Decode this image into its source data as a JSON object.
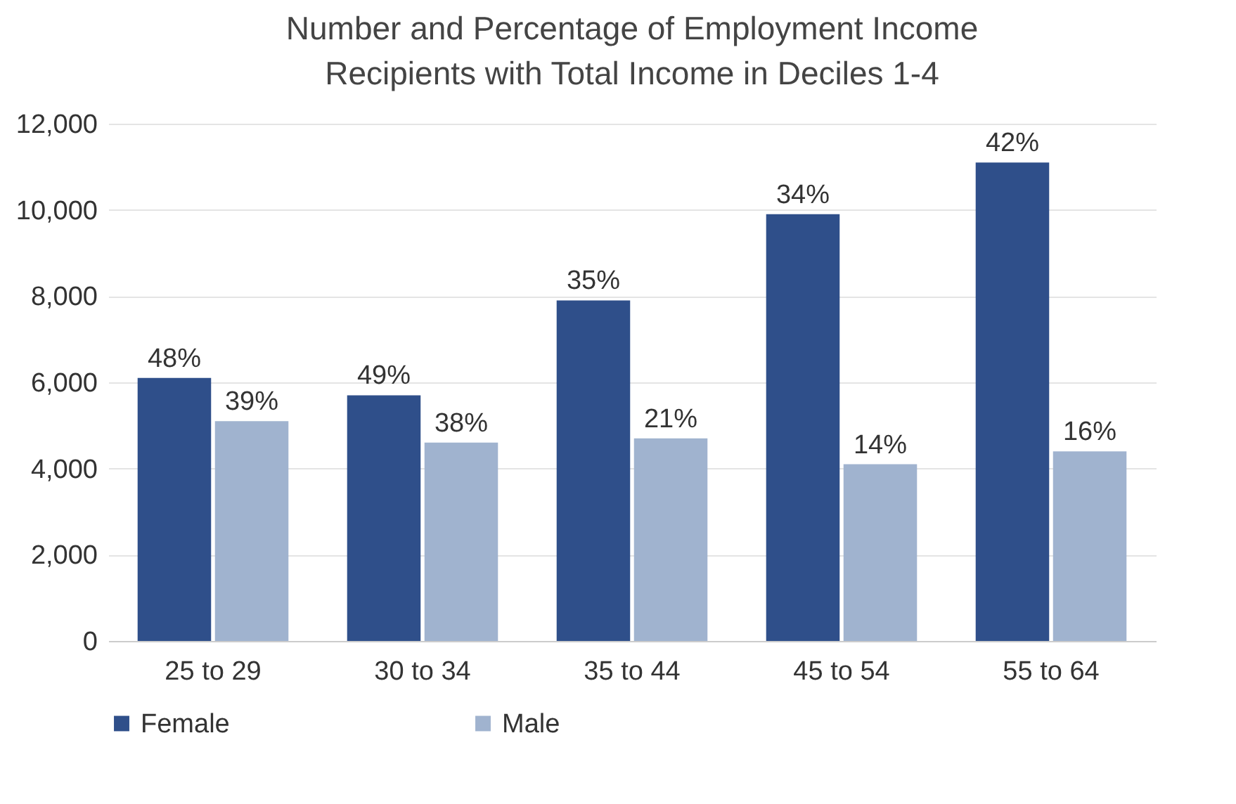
{
  "chart_data": {
    "type": "bar",
    "title": "Number and Percentage of Employment Income Recipients with Total Income in Deciles 1-4",
    "categories": [
      "25 to 29",
      "30 to 34",
      "35 to 44",
      "45 to 54",
      "55 to 64"
    ],
    "series": [
      {
        "name": "Female",
        "color": "#2f4f8a",
        "values": [
          6100,
          5700,
          7900,
          9900,
          11100
        ]
      },
      {
        "name": "Male",
        "color": "#a0b3cf",
        "values": [
          5100,
          4600,
          4700,
          4100,
          4400
        ]
      }
    ],
    "annotations": [
      {
        "text": "48%",
        "x": "25 to 29",
        "y": 6100
      },
      {
        "text": "49%",
        "x": "30 to 34",
        "y": 5700
      },
      {
        "text": "35%",
        "x": "35 to 44",
        "y": 7900
      },
      {
        "text": "34%",
        "x": "45 to 54",
        "y": 9900
      },
      {
        "text": "42%",
        "x": "55 to 64",
        "y": 11100
      },
      {
        "text": "39%",
        "x": "25 to 29",
        "y": 5100
      },
      {
        "text": "38%",
        "x": "30 to 34",
        "y": 4600
      },
      {
        "text": "21%",
        "x": "35 to 44",
        "y": 4700
      },
      {
        "text": "14%",
        "x": "45 to 54",
        "y": 4100
      },
      {
        "text": "16%",
        "x": "55 to 64",
        "y": 4400
      }
    ],
    "ylim": [
      0,
      12000
    ],
    "yticks": [
      0,
      {
        "value": 2000,
        "label": "2,000"
      },
      {
        "value": 4000,
        "label": "4,000"
      },
      {
        "value": 6000,
        "label": "6,000"
      },
      {
        "value": 8000,
        "label": "8,000"
      },
      {
        "value": 10000,
        "label": "10,000"
      },
      {
        "value": 12000,
        "label": "12,000"
      }
    ],
    "grid": "y",
    "legend": "bottom"
  }
}
